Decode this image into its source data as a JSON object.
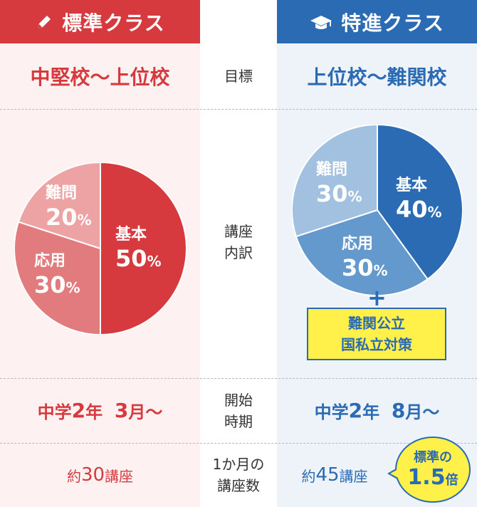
{
  "standard": {
    "header": "標準クラス",
    "icon": "pencil-icon",
    "target": "中堅校〜上位校",
    "pie": [
      {
        "label": "基本",
        "pct": "50",
        "value": 50,
        "color": "#d63a3e"
      },
      {
        "label": "応用",
        "pct": "30",
        "value": 30,
        "color": "#e27b7e"
      },
      {
        "label": "難問",
        "pct": "20",
        "value": 20,
        "color": "#eda3a4"
      }
    ],
    "start": {
      "a": "中学",
      "b": "2",
      "c": "年",
      "d": "3",
      "e": "月〜"
    },
    "count": {
      "a": "約",
      "num": "30",
      "b": "講座"
    }
  },
  "special": {
    "header": "特進クラス",
    "icon": "graduation-cap-icon",
    "target": "上位校〜難関校",
    "pie": [
      {
        "label": "基本",
        "pct": "40",
        "value": 40,
        "color": "#2a6bb3"
      },
      {
        "label": "応用",
        "pct": "30",
        "value": 30,
        "color": "#6499cd"
      },
      {
        "label": "難問",
        "pct": "30",
        "value": 30,
        "color": "#a2c1e0"
      }
    ],
    "plus": "+",
    "extra": {
      "line1": "難関公立",
      "line2": "国私立対策"
    },
    "start": {
      "a": "中学",
      "b": "2",
      "c": "年",
      "d": "8",
      "e": "月〜"
    },
    "count": {
      "a": "約",
      "num": "45",
      "b": "講座"
    },
    "badge": {
      "line1": "標準の",
      "num": "1.5",
      "unit": "倍"
    }
  },
  "labels": {
    "target": "目標",
    "content1": "講座",
    "content2": "内訳",
    "start1": "開始",
    "start2": "時期",
    "count1": "1か月の",
    "count2": "講座数"
  },
  "pct_sign": "%"
}
